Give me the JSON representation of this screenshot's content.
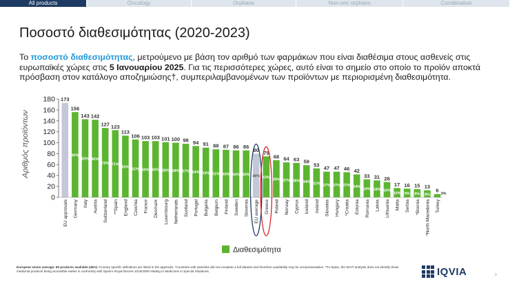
{
  "nav": {
    "tabs": [
      {
        "label": "All products",
        "active": true
      },
      {
        "label": "Oncology",
        "active": false
      },
      {
        "label": "Orphans",
        "active": false
      },
      {
        "label": "Non-onc orphans",
        "active": false
      },
      {
        "label": "Combination",
        "active": false
      }
    ]
  },
  "slide": {
    "title": "Ποσοστό διαθεσιμότητας (2020-2023)",
    "desc_part1": "Το ",
    "desc_highlight": "ποσοστό διαθεσιμότητας",
    "desc_part2": ", μετρούμενο με βάση τον αριθμό των φαρμάκων που είναι διαθέσιμα στους ασθενείς στις ευρωπαϊκές χώρες στις ",
    "desc_bold": "5 Ιανουαρίου 2025",
    "desc_part3": ". Για τις περισσότερες χώρες, αυτό είναι το σημείο στο οποίο το προϊόν αποκτά πρόσβαση στον κατάλογο αποζημιώσης†, συμπεριλαμβανομένων των προϊόντων με περιορισμένη διαθεσιμότητα.",
    "footer_bold": "European Union average: 80 products available (46%)",
    "footer_text": " ¹Country specific definitions are listed in the appendix. *Countries with asterisks did not complete a full dataset and therefore availability may be unrepresentative. **In Spain, the WAIT analysis does not identify those medicinal products being accessible earlier in conformity with Spain's Royal Decree 1015/2009 relating to Medicines in Special Situations.",
    "logo_text": "IQVIA",
    "page_number": "9"
  },
  "colors": {
    "bar": "#5cb531",
    "reference_bar": "#c3c8d8",
    "eu_ring": "#1d3a63",
    "greece_ring": "#d8262d",
    "nav_active": "#1d3a63",
    "highlight": "#1e97d9"
  },
  "chart_data": {
    "type": "bar",
    "ylabel": "Αριθμός προϊόντων",
    "ylim": [
      0,
      180
    ],
    "yticks": [
      0,
      20,
      40,
      60,
      80,
      100,
      120,
      140,
      160,
      180
    ],
    "grid": false,
    "legend_position": "bottom",
    "legend": [
      {
        "name": "Διαθεσιμότητα",
        "color": "#5cb531"
      }
    ],
    "categories": [
      "EU approvals",
      "Germany",
      "Italy",
      "Austria",
      "Switzerland",
      "**Spain",
      "England",
      "Czechia",
      "France",
      "Denmark",
      "Luxembourg",
      "Netherlands",
      "Scotland",
      "Portugal",
      "Bulgaria",
      "Belgium",
      "Finland",
      "Sweden",
      "Slovenia",
      "EU average",
      "Greece",
      "Poland",
      "Norway",
      "Cyprus",
      "Iceland",
      "Ireland",
      "Slovakia",
      "Hungary",
      "*Croatia",
      "Estonia",
      "Romania",
      "Latvia",
      "Lithuania",
      "Malta",
      "Serbia",
      "*Bosnia",
      "*North Macedonia",
      "Turkey"
    ],
    "values": [
      173,
      156,
      143,
      142,
      127,
      123,
      113,
      106,
      103,
      103,
      101,
      100,
      98,
      94,
      91,
      88,
      87,
      86,
      86,
      80,
      75,
      68,
      64,
      63,
      59,
      53,
      47,
      47,
      46,
      42,
      33,
      31,
      28,
      17,
      16,
      15,
      13,
      6
    ],
    "percent_labels": [
      "",
      "90%",
      "83%",
      "82%",
      "73%",
      "71%",
      "65%",
      "61%",
      "60%",
      "60%",
      "58%",
      "58%",
      "57%",
      "54%",
      "53%",
      "51%",
      "50%",
      "50%",
      "50%",
      "46%",
      "43%",
      "39%",
      "37%",
      "36%",
      "34%",
      "31%",
      "27%",
      "27%",
      "27%",
      "24%",
      "19%",
      "18%",
      "16%",
      "10%",
      "9%",
      "9%",
      "8%",
      "3%"
    ],
    "reference_categories": [
      "EU approvals",
      "EU average"
    ],
    "circled_categories": [
      "EU average",
      "Greece"
    ]
  }
}
